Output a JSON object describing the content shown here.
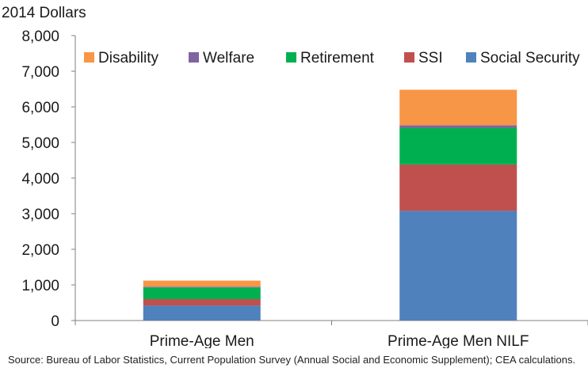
{
  "chart_data": {
    "type": "bar",
    "stacked": true,
    "title": "",
    "ylabel_top": "2014 Dollars",
    "xlabel": "",
    "ylim": [
      0,
      8000
    ],
    "yticks": [
      "0",
      "1,000",
      "2,000",
      "3,000",
      "4,000",
      "5,000",
      "6,000",
      "7,000",
      "8,000"
    ],
    "categories": [
      "Prime-Age Men",
      "Prime-Age Men NILF"
    ],
    "series": [
      {
        "name": "Social Security",
        "color": "#4f81bd",
        "values": [
          420,
          3080
        ]
      },
      {
        "name": "SSI",
        "color": "#c0504d",
        "values": [
          180,
          1300
        ]
      },
      {
        "name": "Retirement",
        "color": "#00b050",
        "values": [
          330,
          1030
        ]
      },
      {
        "name": "Welfare",
        "color": "#8064a2",
        "values": [
          20,
          70
        ]
      },
      {
        "name": "Disability",
        "color": "#f79646",
        "values": [
          170,
          1000
        ]
      }
    ],
    "legend": {
      "position": "top",
      "order": [
        "Disability",
        "Welfare",
        "Retirement",
        "SSI",
        "Social Security"
      ]
    },
    "grid": false
  },
  "source_note": "Source: Bureau of Labor Statistics, Current Population Survey (Annual Social and Economic Supplement); CEA calculations."
}
